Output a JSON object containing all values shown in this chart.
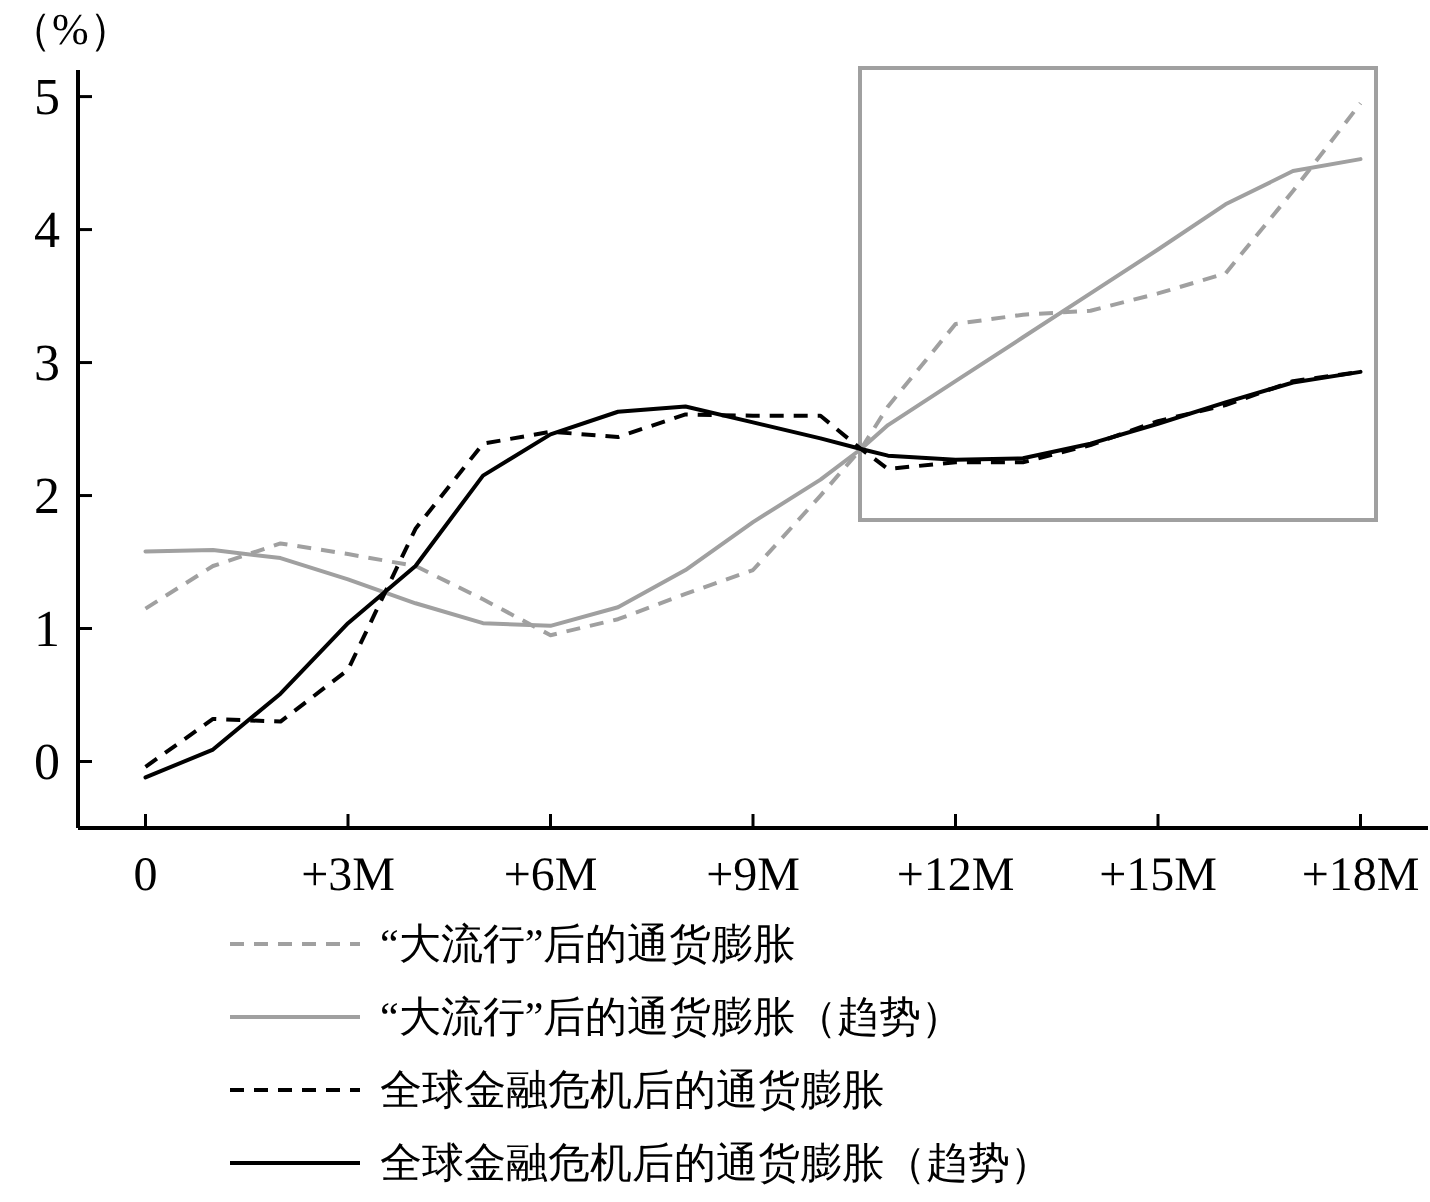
{
  "chart_data": {
    "type": "line",
    "ylabel": "（%）",
    "xlim": [
      -1,
      19
    ],
    "ylim": [
      -0.5,
      5.2
    ],
    "xticks": [
      {
        "value": 0,
        "label": "0"
      },
      {
        "value": 3,
        "label": "+3M"
      },
      {
        "value": 6,
        "label": "+6M"
      },
      {
        "value": 9,
        "label": "+9M"
      },
      {
        "value": 12,
        "label": "+12M"
      },
      {
        "value": 15,
        "label": "+15M"
      },
      {
        "value": 18,
        "label": "+18M"
      }
    ],
    "yticks": [
      0,
      1,
      2,
      3,
      4,
      5
    ],
    "legend": "bottom",
    "series": [
      {
        "name": "“大流行”后的通货膨胀",
        "color": "#a0a0a0",
        "line_style": "dashed",
        "x": [
          0,
          1,
          2,
          3,
          4,
          5,
          6,
          7,
          8,
          9,
          10,
          10.6,
          11,
          12,
          13,
          14,
          15,
          16,
          17,
          18
        ],
        "values": [
          1.15,
          1.47,
          1.64,
          1.56,
          1.47,
          1.22,
          0.95,
          1.07,
          1.26,
          1.44,
          2.0,
          2.35,
          2.67,
          3.29,
          3.36,
          3.39,
          3.52,
          3.67,
          4.29,
          4.95
        ]
      },
      {
        "name": "“大流行”后的通货膨胀（趋势）",
        "color": "#a0a0a0",
        "line_style": "solid",
        "x": [
          0,
          1,
          2,
          3,
          4,
          5,
          6,
          7,
          8,
          9,
          10,
          10.6,
          11,
          12,
          13,
          14,
          15,
          16,
          17,
          18
        ],
        "values": [
          1.58,
          1.59,
          1.53,
          1.37,
          1.19,
          1.04,
          1.02,
          1.16,
          1.44,
          1.8,
          2.12,
          2.35,
          2.53,
          2.86,
          3.19,
          3.52,
          3.85,
          4.19,
          4.44,
          4.53
        ]
      },
      {
        "name": "全球金融危机后的通货膨胀",
        "color": "#000000",
        "line_style": "dashed",
        "x": [
          0,
          1,
          2,
          3,
          4,
          5,
          6,
          7,
          8,
          9,
          10,
          10.6,
          11,
          12,
          13,
          14,
          15,
          16,
          17,
          18
        ],
        "values": [
          -0.04,
          0.32,
          0.3,
          0.69,
          1.75,
          2.39,
          2.48,
          2.44,
          2.61,
          2.6,
          2.6,
          2.35,
          2.2,
          2.25,
          2.25,
          2.38,
          2.56,
          2.68,
          2.86,
          2.93
        ]
      },
      {
        "name": "全球金融危机后的通货膨胀（趋势）",
        "color": "#000000",
        "line_style": "solid",
        "x": [
          0,
          1,
          2,
          3,
          4,
          5,
          6,
          7,
          8,
          9,
          10,
          10.6,
          11,
          12,
          13,
          14,
          15,
          16,
          17,
          18
        ],
        "values": [
          -0.12,
          0.09,
          0.51,
          1.04,
          1.47,
          2.15,
          2.46,
          2.63,
          2.67,
          2.55,
          2.43,
          2.35,
          2.3,
          2.27,
          2.28,
          2.39,
          2.54,
          2.7,
          2.85,
          2.93
        ]
      }
    ]
  }
}
